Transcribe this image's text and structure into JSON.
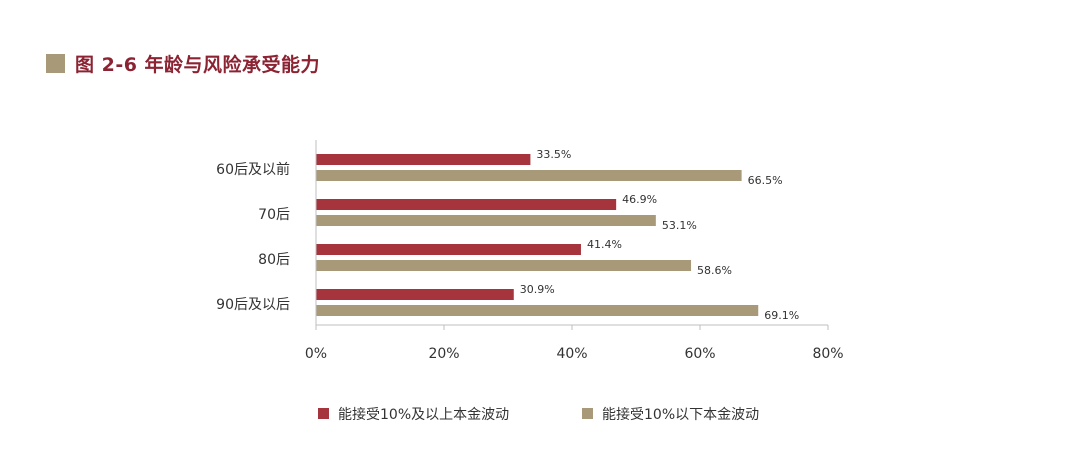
{
  "title": "图 2-6  年龄与风险承受能力",
  "colors": {
    "title": "#8b2333",
    "title_square": "#a89a78",
    "axis": "#bfbfbf"
  },
  "chart_data": {
    "type": "bar",
    "orientation": "horizontal",
    "categories": [
      "60后及以前",
      "70后",
      "80后",
      "90后及以后"
    ],
    "series": [
      {
        "name": "能接受10%及以上本金波动",
        "color": "#a5343c",
        "values": [
          33.5,
          46.9,
          41.4,
          30.9
        ],
        "labels": [
          "33.5%",
          "46.9%",
          "41.4%",
          "30.9%"
        ]
      },
      {
        "name": "能接受10%以下本金波动",
        "color": "#a89a78",
        "values": [
          66.5,
          53.1,
          58.6,
          69.1
        ],
        "labels": [
          "66.5%",
          "53.1%",
          "58.6%",
          "69.1%"
        ]
      }
    ],
    "xlim": [
      0,
      80
    ],
    "xticks": [
      0,
      20,
      40,
      60,
      80
    ],
    "xtick_labels": [
      "0%",
      "20%",
      "40%",
      "60%",
      "80%"
    ],
    "grid": false,
    "legend_position": "bottom"
  }
}
